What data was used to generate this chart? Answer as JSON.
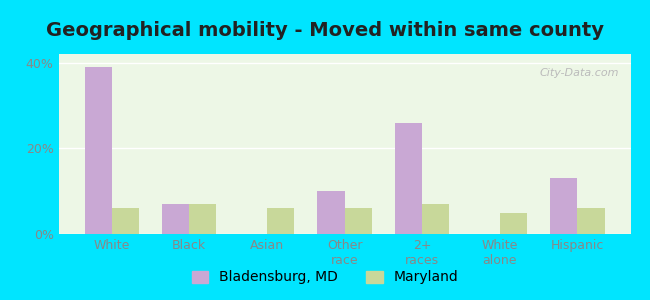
{
  "title": "Geographical mobility - Moved within same county",
  "categories": [
    "White",
    "Black",
    "Asian",
    "Other\nrace",
    "2+\nraces",
    "White\nalone",
    "Hispanic"
  ],
  "bladensburg_values": [
    39,
    7,
    0,
    10,
    26,
    0,
    13
  ],
  "maryland_values": [
    6,
    7,
    6,
    6,
    7,
    5,
    6
  ],
  "bladensburg_color": "#c9a8d4",
  "maryland_color": "#c8d89a",
  "bladensburg_label": "Bladensburg, MD",
  "maryland_label": "Maryland",
  "ylim": [
    0,
    42
  ],
  "yticks": [
    0,
    20,
    40
  ],
  "ytick_labels": [
    "0%",
    "20%",
    "40%"
  ],
  "bar_width": 0.35,
  "plot_bg_color": "#edf7e6",
  "outer_background": "#00e5ff",
  "title_fontsize": 14,
  "tick_fontsize": 9,
  "legend_fontsize": 10
}
